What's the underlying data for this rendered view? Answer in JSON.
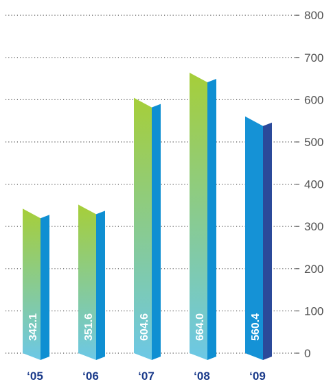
{
  "chart_data": {
    "type": "bar",
    "categories": [
      "‘05",
      "‘06",
      "‘07",
      "‘08",
      "‘09"
    ],
    "values": [
      342.1,
      351.6,
      604.6,
      664.0,
      560.4
    ],
    "data_labels": [
      "342.1",
      "351.6",
      "604.6",
      "664.0",
      "560.4"
    ],
    "y_ticks": [
      "0",
      "100",
      "200",
      "300",
      "400",
      "500",
      "600",
      "700",
      "800"
    ],
    "ylim": [
      0,
      800
    ],
    "y_axis_position": "right",
    "grid": true,
    "title": "",
    "xlabel": "",
    "ylabel": "",
    "colors": {
      "gradient_top": "#a6ce39",
      "gradient_bottom": "#6cc8e6",
      "side": "#0f8fd2",
      "highlight_front": "#1592d6",
      "highlight_side": "#2b4a9a",
      "category_text": "#1a3a8a"
    }
  }
}
